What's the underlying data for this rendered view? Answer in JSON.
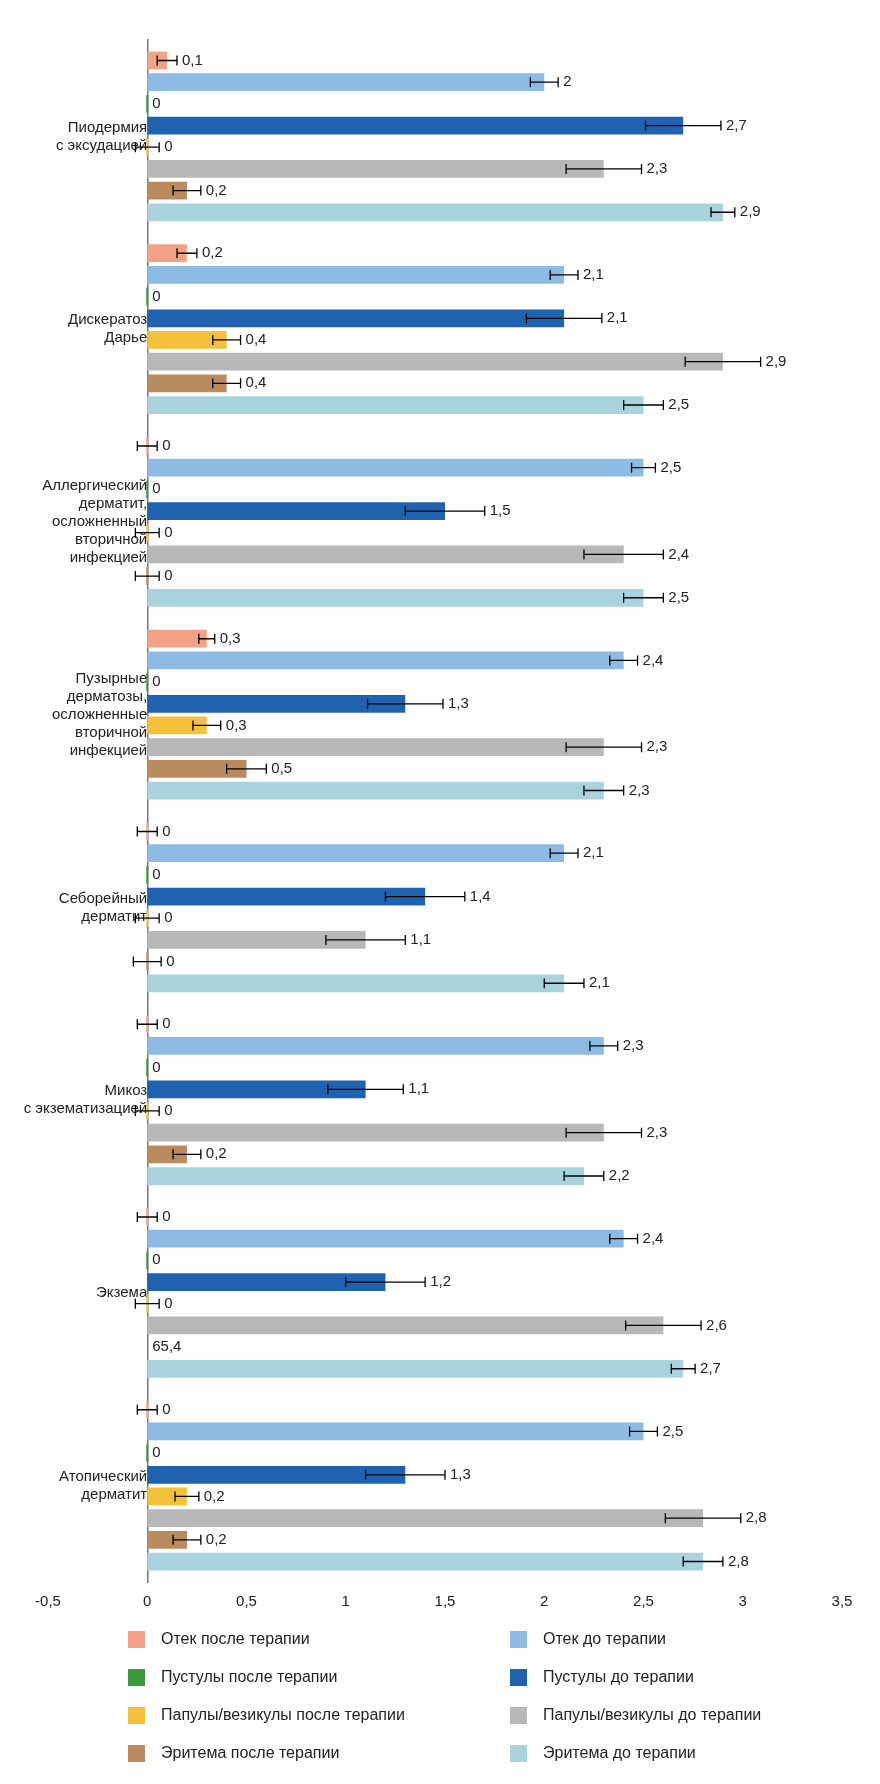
{
  "chart_data": {
    "type": "bar",
    "orientation": "horizontal",
    "categories": [
      "Пиодермия\nс эксудацией",
      "Дискератоз\nДарье",
      "Аллергический\nдерматит,\nосложненный\nвторичной\nинфекцией",
      "Пузырные\nдерматозы,\nосложненные\nвторичной\nинфекцией",
      "Себорейный\nдерматит",
      "Микоз\nс экзематизацией",
      "Экзема",
      "Атопический\nдерматит"
    ],
    "series": [
      {
        "name": "Отек после терапии",
        "color": "#f4a285",
        "values": [
          0.1,
          0.2,
          0,
          0.3,
          0,
          0,
          0,
          0
        ],
        "errors": [
          0.05,
          0.05,
          0.05,
          0.04,
          0.05,
          0.05,
          0.05,
          0.05
        ],
        "value_labels": [
          "0,1",
          "0,2",
          "0",
          "0,3",
          "0",
          "0",
          "0",
          "0"
        ]
      },
      {
        "name": "Отек  до терапии",
        "color": "#8dbbe3",
        "values": [
          2,
          2.1,
          2.5,
          2.4,
          2.1,
          2.3,
          2.4,
          2.5
        ],
        "errors": [
          0.07,
          0.07,
          0.06,
          0.07,
          0.07,
          0.07,
          0.07,
          0.07
        ],
        "value_labels": [
          "2",
          "2,1",
          "2,5",
          "2,4",
          "2,1",
          "2,3",
          "2,4",
          "2,5"
        ]
      },
      {
        "name": "Пустулы после терапии",
        "color": "#3a9a3a",
        "values": [
          0,
          0,
          0,
          0,
          0,
          0,
          0,
          0
        ],
        "value_labels": [
          "0",
          "0",
          "0",
          "0",
          "0",
          "0",
          "0",
          "0"
        ]
      },
      {
        "name": "Пустулы до терапии",
        "color": "#1f63b0",
        "values": [
          2.7,
          2.1,
          1.5,
          1.3,
          1.4,
          1.1,
          1.2,
          1.3
        ],
        "errors": [
          0.19,
          0.19,
          0.2,
          0.19,
          0.2,
          0.19,
          0.2,
          0.2
        ],
        "value_labels": [
          "2,7",
          "2,1",
          "1,5",
          "1,3",
          "1,4",
          "1,1",
          "1,2",
          "1,3"
        ]
      },
      {
        "name": "Папулы/везикулы после терапии",
        "color": "#f6c13a",
        "values": [
          0,
          0.4,
          0,
          0.3,
          0,
          0,
          0,
          0.2
        ],
        "errors": [
          0.06,
          0.07,
          0.06,
          0.07,
          0.06,
          0.06,
          0.06,
          0.06
        ],
        "value_labels": [
          "0",
          "0,4",
          "0",
          "0,3",
          "0",
          "0",
          "0",
          "0,2"
        ]
      },
      {
        "name": "Папулы/везикулы до терапии",
        "color": "#b8b8b8",
        "values": [
          2.3,
          2.9,
          2.4,
          2.3,
          1.1,
          2.3,
          2.6,
          2.8
        ],
        "errors": [
          0.19,
          0.19,
          0.2,
          0.19,
          0.2,
          0.19,
          0.19,
          0.19
        ],
        "value_labels": [
          "2,3",
          "2,9",
          "2,4",
          "2,3",
          "1,1",
          "2,3",
          "2,6",
          "2,8"
        ]
      },
      {
        "name": "Эритема после терапии",
        "color": "#b98b5f",
        "values": [
          0.2,
          0.4,
          0,
          0.5,
          0,
          0.2,
          null,
          0.2
        ],
        "errors": [
          0.07,
          0.07,
          0.06,
          0.1,
          0.07,
          0.07,
          null,
          0.07
        ],
        "value_labels": [
          "0,2",
          "0,4",
          "0",
          "0,5",
          "0",
          "0,2",
          "65,4",
          "0,2"
        ]
      },
      {
        "name": "Эритема до терапии",
        "color": "#a9d4de",
        "values": [
          2.9,
          2.5,
          2.5,
          2.3,
          2.1,
          2.2,
          2.7,
          2.8
        ],
        "errors": [
          0.06,
          0.1,
          0.1,
          0.1,
          0.1,
          0.1,
          0.06,
          0.1
        ],
        "value_labels": [
          "2,9",
          "2,5",
          "2,5",
          "2,3",
          "2,1",
          "2,2",
          "2,7",
          "2,8"
        ]
      }
    ],
    "xlim": [
      -0.5,
      3.5
    ],
    "xticks": [
      {
        "value": -0.5,
        "label": "-0,5"
      },
      0,
      {
        "value": 0.5,
        "label": "0,5"
      },
      1,
      {
        "value": 1.5,
        "label": "1,5"
      },
      2,
      {
        "value": 2.5,
        "label": "2,5"
      },
      3,
      {
        "value": 3.5,
        "label": "3,5"
      }
    ],
    "grid": false,
    "legend": "bottom"
  }
}
